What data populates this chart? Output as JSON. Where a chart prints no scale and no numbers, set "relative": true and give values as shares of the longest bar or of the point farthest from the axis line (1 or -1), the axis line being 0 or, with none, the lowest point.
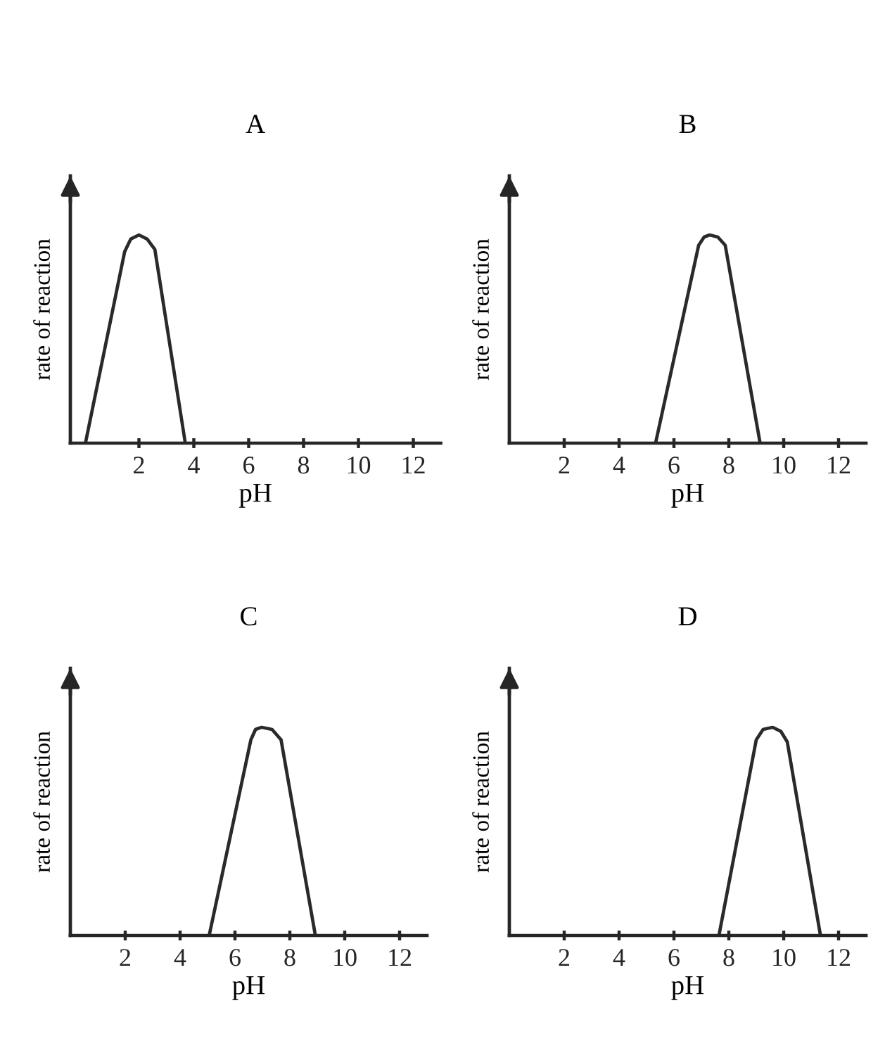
{
  "chart_data": [
    {
      "type": "line",
      "title": "A",
      "xlabel": "pH",
      "ylabel": "rate of reaction",
      "relative": true,
      "color": "#2a2a2a",
      "x": [
        0.05,
        1.48,
        1.7,
        2.0,
        2.3,
        2.58,
        3.69
      ],
      "values": [
        0,
        0.92,
        0.98,
        1.0,
        0.98,
        0.93,
        0
      ],
      "xlim": [
        -0.5,
        13
      ],
      "xticks": [
        2,
        4,
        6,
        8,
        10,
        12
      ]
    },
    {
      "type": "line",
      "title": "B",
      "xlabel": "pH",
      "ylabel": "rate of reaction",
      "relative": true,
      "color": "#2a2a2a",
      "x": [
        5.33,
        6.9,
        7.1,
        7.3,
        7.6,
        7.87,
        9.14
      ],
      "values": [
        0,
        0.95,
        0.99,
        1.0,
        0.99,
        0.95,
        0
      ],
      "xlim": [
        0,
        13
      ],
      "xticks": [
        2,
        4,
        6,
        8,
        10,
        12
      ]
    },
    {
      "type": "line",
      "title": "C",
      "xlabel": "pH",
      "ylabel": "rate of reaction",
      "relative": true,
      "color": "#2a2a2a",
      "x": [
        5.06,
        6.58,
        6.75,
        6.97,
        7.35,
        7.68,
        8.93
      ],
      "values": [
        0,
        0.94,
        0.99,
        1.0,
        0.99,
        0.94,
        0
      ],
      "xlim": [
        0,
        13
      ],
      "xticks": [
        2,
        4,
        6,
        8,
        10,
        12
      ]
    },
    {
      "type": "line",
      "title": "D",
      "xlabel": "pH",
      "ylabel": "rate of reaction",
      "relative": true,
      "color": "#2a2a2a",
      "x": [
        7.64,
        9.0,
        9.25,
        9.6,
        9.9,
        10.13,
        11.34
      ],
      "values": [
        0,
        0.94,
        0.99,
        1.0,
        0.98,
        0.93,
        0
      ],
      "xlim": [
        0,
        13
      ],
      "xticks": [
        2,
        4,
        6,
        8,
        10,
        12
      ]
    }
  ]
}
